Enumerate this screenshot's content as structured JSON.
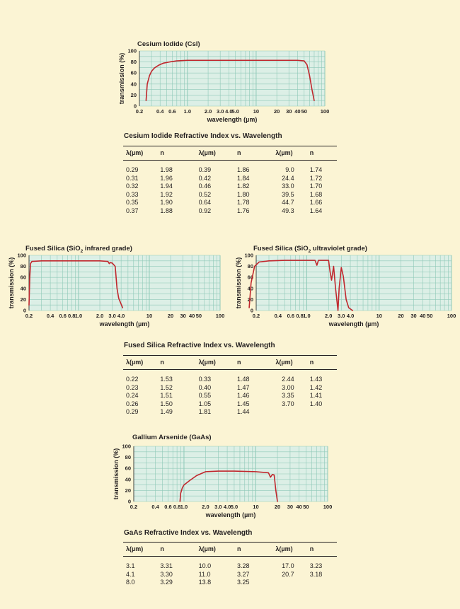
{
  "csi": {
    "title": "Cesium Iodide (CsI)",
    "table_title": "Cesium Iodide Refractive Index vs. Wavelength",
    "headers": [
      "λ(µm)",
      "n",
      "λ(µm)",
      "n",
      "λ(µm)",
      "n"
    ],
    "rows": [
      [
        "0.29",
        "1.98",
        "0.39",
        "1.86",
        "9.0",
        "1.74"
      ],
      [
        "0.31",
        "1.96",
        "0.42",
        "1.84",
        "24.4",
        "1.72"
      ],
      [
        "0.32",
        "1.94",
        "0.46",
        "1.82",
        "33.0",
        "1.70"
      ],
      [
        "0.33",
        "1.92",
        "0.52",
        "1.80",
        "39.5",
        "1.68"
      ],
      [
        "0.35",
        "1.90",
        "0.64",
        "1.78",
        "44.7",
        "1.66"
      ],
      [
        "0.37",
        "1.88",
        "0.92",
        "1.76",
        "49.3",
        "1.64"
      ]
    ]
  },
  "fs": {
    "table_title": "Fused Silica Refractive Index vs. Wavelength",
    "headers": [
      "λ(µm)",
      "n",
      "λ(µm)",
      "n",
      "λ(µm)",
      "n"
    ],
    "rows": [
      [
        "0.22",
        "1.53",
        "0.33",
        "1.48",
        "2.44",
        "1.43"
      ],
      [
        "0.23",
        "1.52",
        "0.40",
        "1.47",
        "3.00",
        "1.42"
      ],
      [
        "0.24",
        "1.51",
        "0.55",
        "1.46",
        "3.35",
        "1.41"
      ],
      [
        "0.26",
        "1.50",
        "1.05",
        "1.45",
        "3.70",
        "1.40"
      ],
      [
        "0.29",
        "1.49",
        "1.81",
        "1.44",
        "",
        ""
      ]
    ]
  },
  "gaas": {
    "title": "Gallium Arsenide (GaAs)",
    "table_title": "GaAs Refractive Index vs. Wavelength",
    "headers": [
      "λ(µm)",
      "n",
      "λ(µm)",
      "n",
      "λ(µm)",
      "n"
    ],
    "rows": [
      [
        "3.1",
        "3.31",
        "10.0",
        "3.28",
        "17.0",
        "3.23"
      ],
      [
        "4.1",
        "3.30",
        "11.0",
        "3.27",
        "20.7",
        "3.18"
      ],
      [
        "8.0",
        "3.29",
        "13.8",
        "3.25",
        "",
        ""
      ]
    ]
  },
  "colors": {
    "background": "#fbf4d4",
    "plot_fill": "#dcefe6",
    "grid": "#8fc9b8",
    "curve": "#c0272d",
    "text": "#231f20"
  },
  "chart_data": [
    {
      "id": "csi",
      "type": "line",
      "title": "Cesium Iodide (CsI)",
      "title_parts": [
        "Cesium Iodide (CsI)"
      ],
      "xlabel": "wavelength (µm)",
      "ylabel": "transmission (%)",
      "x_scale": "log",
      "xlim": [
        0.2,
        100
      ],
      "ylim": [
        0,
        100
      ],
      "xticks": [
        "0.2",
        "0.4",
        "0.6",
        "1.0",
        "2.0",
        "3.0",
        "4.0",
        "5.0",
        "10",
        "20",
        "30",
        "40",
        "50",
        "100"
      ],
      "yticks": [
        "0",
        "20",
        "40",
        "60",
        "80",
        "100"
      ],
      "grid": true,
      "series": [
        {
          "x": [
            0.25,
            0.26,
            0.28,
            0.3,
            0.33,
            0.38,
            0.45,
            0.55,
            0.7,
            1,
            2,
            5,
            10,
            20,
            40,
            50,
            55,
            60,
            65,
            70
          ],
          "y": [
            10,
            40,
            55,
            63,
            69,
            74,
            78,
            80,
            82,
            83,
            83,
            83,
            83,
            83,
            83,
            82,
            75,
            55,
            30,
            10
          ]
        }
      ]
    },
    {
      "id": "fs_ir",
      "type": "line",
      "title": "Fused Silica (SiO2 infrared grade)",
      "title_parts": [
        "Fused Silica (SiO",
        "2",
        " infrared grade)"
      ],
      "xlabel": "wavelength (µm)",
      "ylabel": "transmission (%)",
      "x_scale": "log",
      "xlim": [
        0.2,
        100
      ],
      "ylim": [
        0,
        100
      ],
      "xticks": [
        "0.2",
        "0.4",
        "0.6",
        "0.8",
        "1.0",
        "2.0",
        "3.0",
        "4.0",
        "10",
        "20",
        "30",
        "40",
        "50",
        "100"
      ],
      "yticks": [
        "0",
        "20",
        "40",
        "60",
        "80",
        "100"
      ],
      "grid": true,
      "series": [
        {
          "x": [
            0.2,
            0.205,
            0.21,
            0.22,
            0.3,
            0.5,
            1,
            2,
            2.6,
            2.72,
            2.8,
            3.0,
            3.3,
            3.5,
            3.7,
            3.9,
            4.2
          ],
          "y": [
            10,
            60,
            85,
            89,
            90,
            90,
            90,
            90,
            89,
            85,
            87,
            86,
            80,
            40,
            22,
            15,
            5
          ]
        }
      ]
    },
    {
      "id": "fs_uv",
      "type": "line",
      "title": "Fused Silica (SiO2 ultraviolet grade)",
      "title_parts": [
        "Fused Silica (SiO",
        "2",
        " ultraviolet grade)"
      ],
      "xlabel": "wavelength (µm)",
      "ylabel": "transmission (%)",
      "x_scale": "log",
      "xlim": [
        0.2,
        100
      ],
      "ylim": [
        0,
        100
      ],
      "xticks": [
        "0.2",
        "0.4",
        "0.6",
        "0.8",
        "1.0",
        "2.0",
        "3.0",
        "4.0",
        "10",
        "20",
        "30",
        "40",
        "50",
        "100"
      ],
      "yticks": [
        "0",
        "20",
        "40",
        "60",
        "80",
        "100"
      ],
      "grid": true,
      "series": [
        {
          "x": [
            0.16,
            0.17,
            0.19,
            0.22,
            0.3,
            0.5,
            1,
            1.3,
            1.38,
            1.45,
            1.6,
            2,
            2.1,
            2.2,
            2.35,
            2.5,
            2.7,
            2.8,
            3.0,
            3.2,
            3.5,
            3.8,
            4.3
          ],
          "y": [
            5,
            50,
            80,
            88,
            90,
            91,
            91,
            91,
            82,
            91,
            91,
            91,
            70,
            55,
            80,
            40,
            0,
            40,
            78,
            62,
            20,
            5,
            0
          ]
        }
      ]
    },
    {
      "id": "gaas",
      "type": "line",
      "title": "Gallium Arsenide (GaAs)",
      "title_parts": [
        "Gallium Arsenide (GaAs)"
      ],
      "xlabel": "wavelength (µm)",
      "ylabel": "transmission (%)",
      "x_scale": "log",
      "xlim": [
        0.2,
        100
      ],
      "ylim": [
        0,
        100
      ],
      "xticks": [
        "0.2",
        "0.4",
        "0.6",
        "0.8",
        "1.0",
        "2.0",
        "3.0",
        "4.0",
        "5.0",
        "10",
        "20",
        "30",
        "40",
        "50",
        "100"
      ],
      "yticks": [
        "0",
        "20",
        "40",
        "60",
        "80",
        "100"
      ],
      "grid": true,
      "series": [
        {
          "x": [
            0.88,
            0.9,
            0.95,
            1.0,
            1.2,
            1.5,
            2,
            3,
            5,
            10,
            15,
            16,
            17,
            18,
            19,
            20
          ],
          "y": [
            0,
            15,
            25,
            30,
            38,
            47,
            54,
            55,
            55,
            54,
            52,
            44,
            49,
            48,
            20,
            0
          ]
        }
      ]
    }
  ]
}
